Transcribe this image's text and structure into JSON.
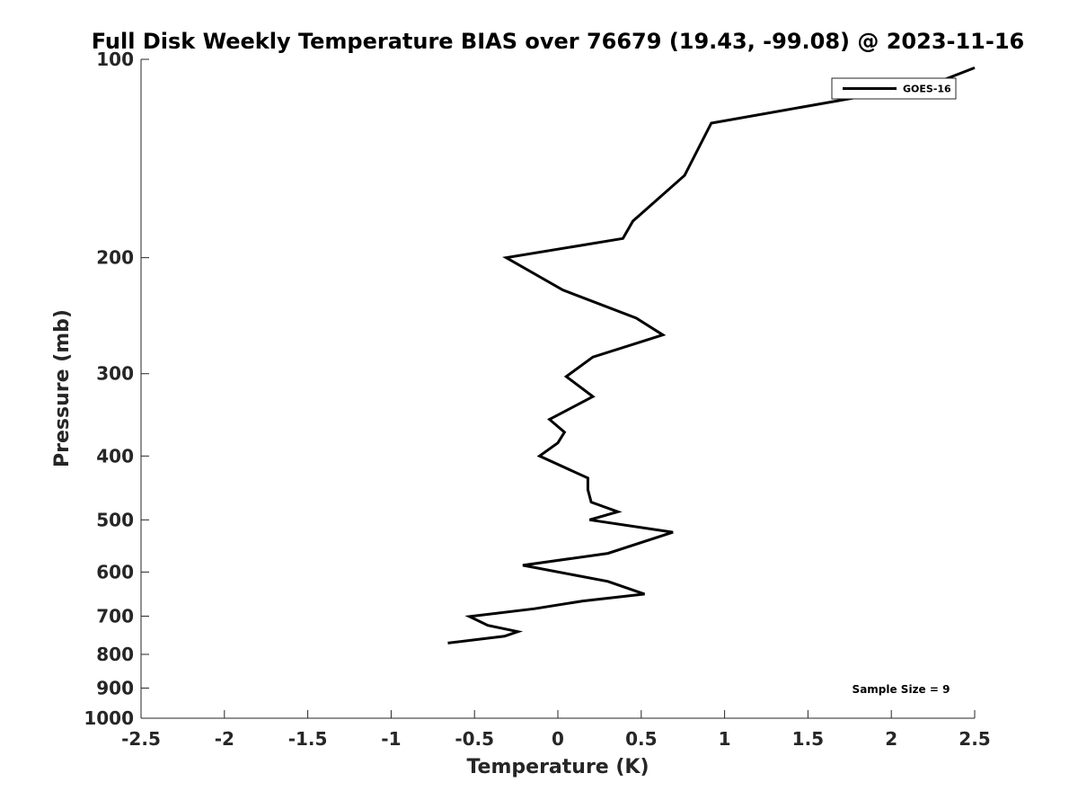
{
  "chart_data": {
    "type": "line",
    "title": "Full Disk Weekly Temperature BIAS over 76679 (19.43, -99.08) @ 2023-11-16",
    "xlabel": "Temperature (K)",
    "ylabel": "Pressure (mb)",
    "xlim": [
      -2.5,
      2.5
    ],
    "ylim": [
      100,
      1000
    ],
    "yscale": "log",
    "y_reversed": true,
    "x_ticks": [
      -2.5,
      -2,
      -1.5,
      -1,
      -0.5,
      0,
      0.5,
      1,
      1.5,
      2,
      2.5
    ],
    "x_tick_labels": [
      "-2.5",
      "-2",
      "-1.5",
      "-1",
      "-0.5",
      "0",
      "0.5",
      "1",
      "1.5",
      "2",
      "2.5"
    ],
    "y_ticks": [
      100,
      200,
      300,
      400,
      500,
      600,
      700,
      800,
      900,
      1000
    ],
    "y_tick_labels": [
      "100",
      "200",
      "300",
      "400",
      "500",
      "600",
      "700",
      "800",
      "900",
      "1000"
    ],
    "grid": false,
    "legend_position": "top-right",
    "annotation": "Sample Size = 9",
    "line_color": "#000000",
    "series": [
      {
        "name": "GOES-16",
        "x": [
          2.5,
          2.25,
          0.92,
          0.76,
          0.45,
          0.39,
          -0.31,
          0.03,
          0.47,
          0.63,
          0.21,
          0.05,
          0.21,
          -0.05,
          0.04,
          0.0,
          -0.11,
          0.18,
          0.18,
          0.2,
          0.36,
          0.19,
          0.69,
          0.3,
          -0.21,
          0.3,
          0.52,
          0.15,
          -0.14,
          -0.53,
          -0.42,
          -0.24,
          -0.32,
          -0.66
        ],
        "y": [
          103,
          109,
          125,
          150,
          176,
          187,
          200,
          224,
          247,
          262,
          283,
          303,
          325,
          352,
          368,
          382,
          400,
          432,
          450,
          470,
          486,
          500,
          522,
          562,
          586,
          620,
          648,
          664,
          682,
          701,
          723,
          739,
          751,
          769
        ]
      }
    ]
  }
}
